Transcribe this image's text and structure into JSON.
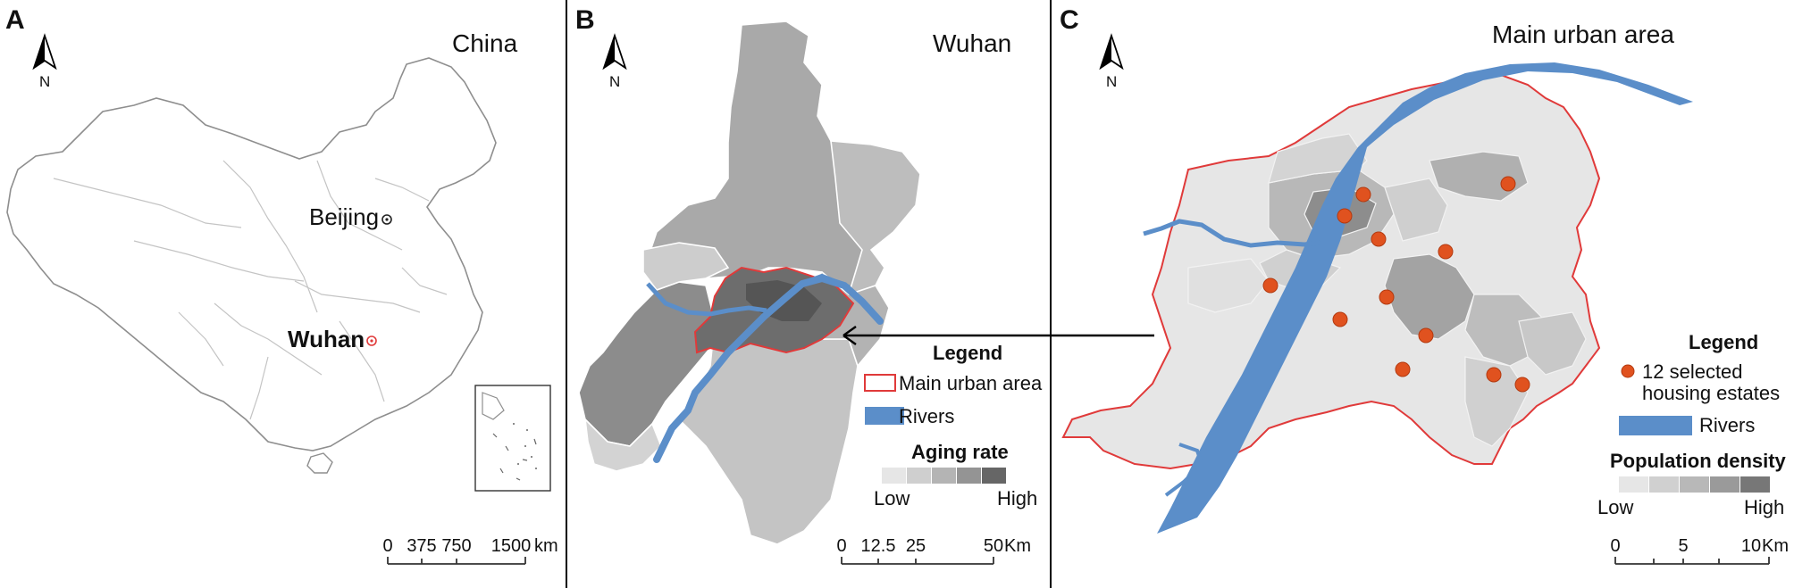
{
  "panel_a": {
    "label": "A",
    "title": "China",
    "cities": [
      {
        "name": "Beijing",
        "highlight": false
      },
      {
        "name": "Wuhan",
        "highlight": true
      }
    ],
    "north": "N",
    "scale": {
      "ticks": [
        "0",
        "375",
        "750",
        "1500"
      ],
      "unit": "km"
    }
  },
  "panel_b": {
    "label": "B",
    "title": "Wuhan",
    "north": "N",
    "legend": {
      "title": "Legend",
      "main_urban": "Main urban area",
      "rivers": "Rivers",
      "ramp_title": "Aging rate",
      "low": "Low",
      "high": "High",
      "ramp_colors": [
        "#e6e6e6",
        "#cfcfcf",
        "#b4b4b4",
        "#949494",
        "#666666"
      ]
    },
    "scale": {
      "ticks": [
        "0",
        "12.5",
        "25",
        "50"
      ],
      "unit": "Km"
    }
  },
  "panel_c": {
    "label": "C",
    "title": "Main urban area",
    "north": "N",
    "legend": {
      "title": "Legend",
      "estates_line1": "12 selected",
      "estates_line2": "housing estates",
      "rivers": "Rivers",
      "ramp_title": "Population density",
      "low": "Low",
      "high": "High",
      "ramp_colors": [
        "#e6e6e6",
        "#d0d0d0",
        "#b8b8b8",
        "#9a9a9a",
        "#777777"
      ]
    },
    "scale": {
      "ticks": [
        "0",
        "5",
        "10"
      ],
      "unit": "Km"
    }
  },
  "colors": {
    "river": "#5b8ec9",
    "urban_outline": "#e03a3a",
    "estate": "#e0521f",
    "boundary": "#9a9a9a"
  }
}
